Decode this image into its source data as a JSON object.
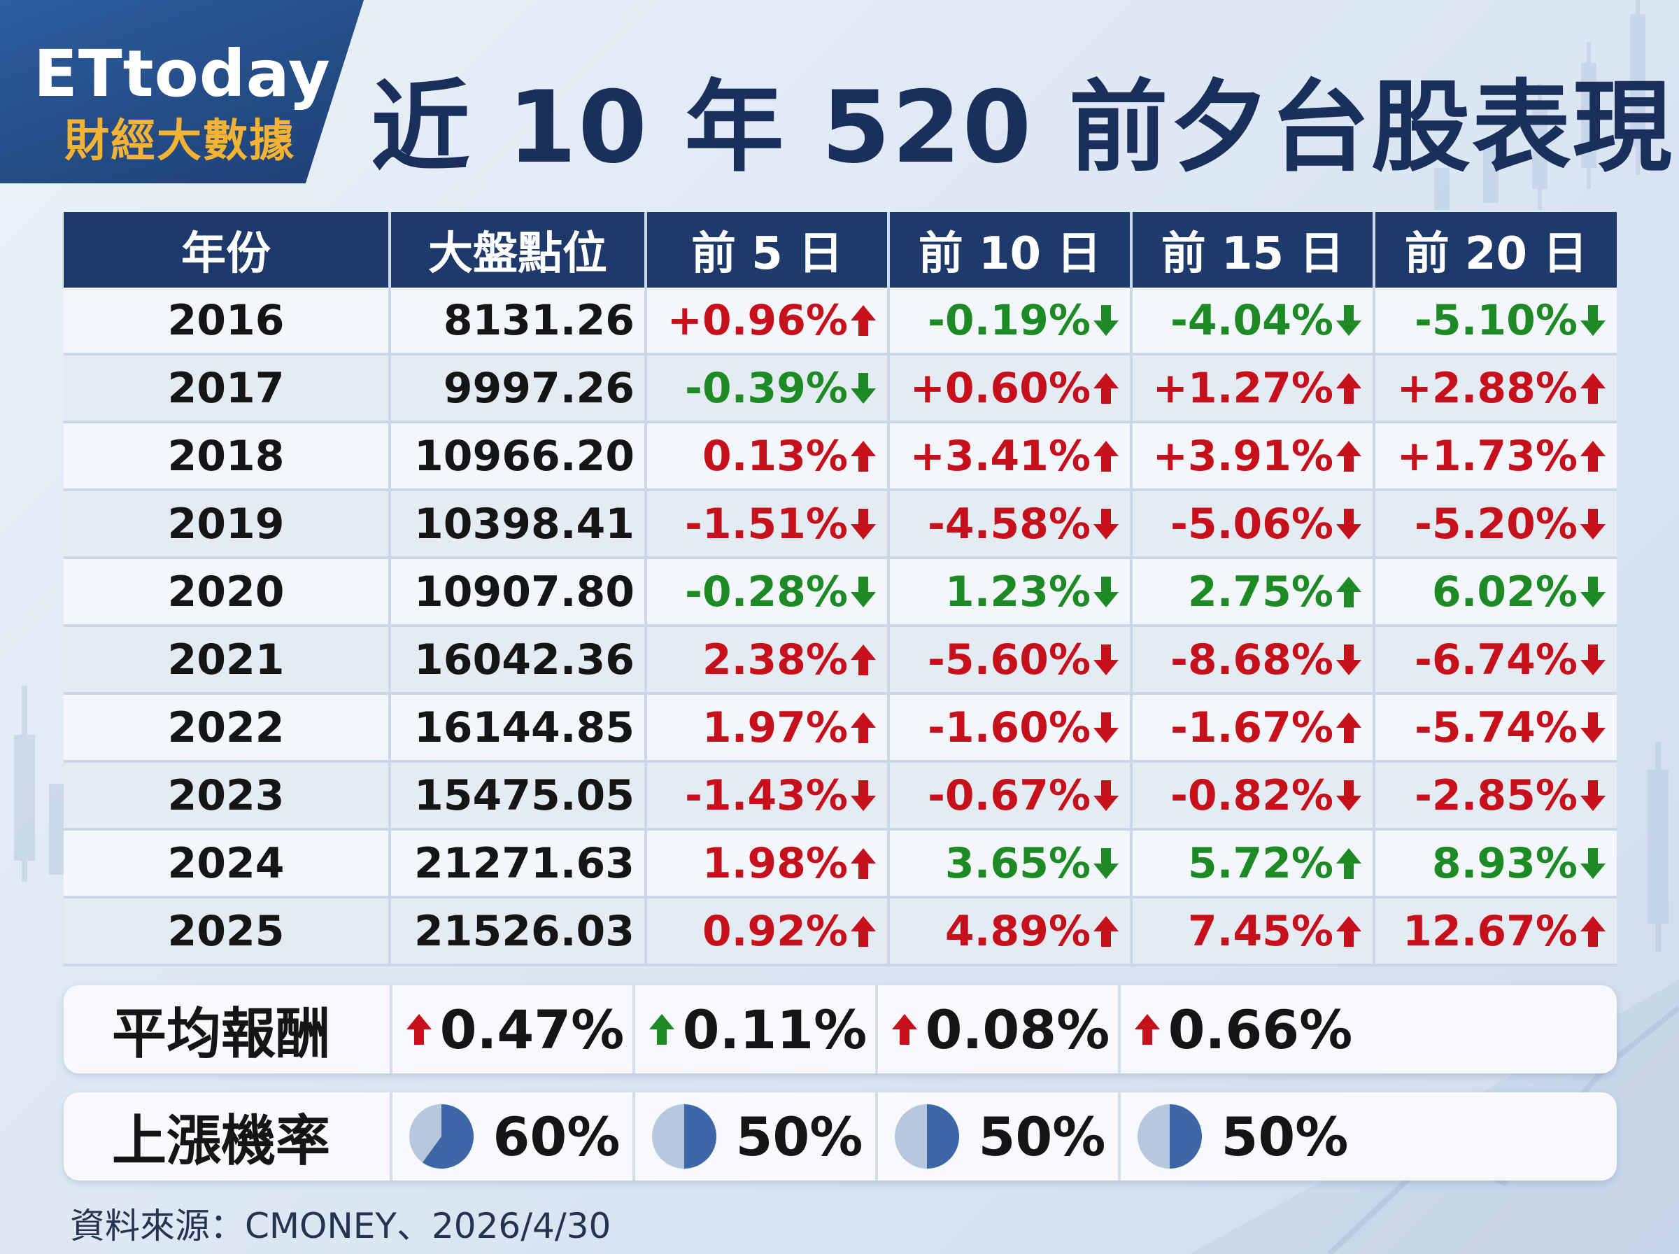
{
  "brand": {
    "logo_main": "ETtoday",
    "logo_sub": "財經大數據"
  },
  "title": "近 10 年 520 前夕台股表現",
  "chart_data": {
    "type": "table",
    "columns": [
      "年份",
      "大盤點位",
      "前 5 日",
      "前 10 日",
      "前 15 日",
      "前 20 日"
    ],
    "rows": [
      {
        "year": "2016",
        "index": "8131.26",
        "cells": [
          {
            "text": "+0.96%",
            "color": "up",
            "arrow": "up"
          },
          {
            "text": "-0.19%",
            "color": "down",
            "arrow": "down"
          },
          {
            "text": "-4.04%",
            "color": "down",
            "arrow": "down"
          },
          {
            "text": "-5.10%",
            "color": "down",
            "arrow": "down"
          }
        ]
      },
      {
        "year": "2017",
        "index": "9997.26",
        "cells": [
          {
            "text": "-0.39%",
            "color": "down",
            "arrow": "down"
          },
          {
            "text": "+0.60%",
            "color": "up",
            "arrow": "up"
          },
          {
            "text": "+1.27%",
            "color": "up",
            "arrow": "up"
          },
          {
            "text": "+2.88%",
            "color": "up",
            "arrow": "up"
          }
        ]
      },
      {
        "year": "2018",
        "index": "10966.20",
        "cells": [
          {
            "text": "0.13%",
            "color": "up",
            "arrow": "up"
          },
          {
            "text": "+3.41%",
            "color": "up",
            "arrow": "up"
          },
          {
            "text": "+3.91%",
            "color": "up",
            "arrow": "up"
          },
          {
            "text": "+1.73%",
            "color": "up",
            "arrow": "up"
          }
        ]
      },
      {
        "year": "2019",
        "index": "10398.41",
        "cells": [
          {
            "text": "-1.51%",
            "color": "up",
            "arrow": "down"
          },
          {
            "text": "-4.58%",
            "color": "up",
            "arrow": "down"
          },
          {
            "text": "-5.06%",
            "color": "up",
            "arrow": "down"
          },
          {
            "text": "-5.20%",
            "color": "up",
            "arrow": "down"
          }
        ]
      },
      {
        "year": "2020",
        "index": "10907.80",
        "cells": [
          {
            "text": "-0.28%",
            "color": "down",
            "arrow": "down"
          },
          {
            "text": "1.23%",
            "color": "down",
            "arrow": "down"
          },
          {
            "text": "2.75%",
            "color": "down",
            "arrow": "up"
          },
          {
            "text": "6.02%",
            "color": "down",
            "arrow": "down"
          }
        ]
      },
      {
        "year": "2021",
        "index": "16042.36",
        "cells": [
          {
            "text": "2.38%",
            "color": "up",
            "arrow": "up"
          },
          {
            "text": "-5.60%",
            "color": "up",
            "arrow": "down"
          },
          {
            "text": "-8.68%",
            "color": "up",
            "arrow": "down"
          },
          {
            "text": "-6.74%",
            "color": "up",
            "arrow": "down"
          }
        ]
      },
      {
        "year": "2022",
        "index": "16144.85",
        "cells": [
          {
            "text": "1.97%",
            "color": "up",
            "arrow": "up"
          },
          {
            "text": "-1.60%",
            "color": "up",
            "arrow": "down"
          },
          {
            "text": "-1.67%",
            "color": "up",
            "arrow": "up"
          },
          {
            "text": "-5.74%",
            "color": "up",
            "arrow": "down"
          }
        ]
      },
      {
        "year": "2023",
        "index": "15475.05",
        "cells": [
          {
            "text": "-1.43%",
            "color": "up",
            "arrow": "down"
          },
          {
            "text": "-0.67%",
            "color": "up",
            "arrow": "down"
          },
          {
            "text": "-0.82%",
            "color": "up",
            "arrow": "down"
          },
          {
            "text": "-2.85%",
            "color": "up",
            "arrow": "down"
          }
        ]
      },
      {
        "year": "2024",
        "index": "21271.63",
        "cells": [
          {
            "text": "1.98%",
            "color": "up",
            "arrow": "up"
          },
          {
            "text": "3.65%",
            "color": "down",
            "arrow": "down"
          },
          {
            "text": "5.72%",
            "color": "down",
            "arrow": "up"
          },
          {
            "text": "8.93%",
            "color": "down",
            "arrow": "down"
          }
        ]
      },
      {
        "year": "2025",
        "index": "21526.03",
        "cells": [
          {
            "text": "0.92%",
            "color": "up",
            "arrow": "up"
          },
          {
            "text": "4.89%",
            "color": "up",
            "arrow": "up"
          },
          {
            "text": "7.45%",
            "color": "up",
            "arrow": "up"
          },
          {
            "text": "12.67%",
            "color": "up",
            "arrow": "up"
          }
        ]
      }
    ],
    "average": {
      "label": "平均報酬",
      "values": [
        {
          "text": "0.47%",
          "arrow": "up",
          "color": "up"
        },
        {
          "text": "0.11%",
          "arrow": "up",
          "color": "down"
        },
        {
          "text": "0.08%",
          "arrow": "up",
          "color": "up"
        },
        {
          "text": "0.66%",
          "arrow": "up",
          "color": "up"
        }
      ]
    },
    "probability": {
      "label": "上漲機率",
      "values": [
        {
          "text": "60%",
          "value": 60
        },
        {
          "text": "50%",
          "value": 50
        },
        {
          "text": "50%",
          "value": 50
        },
        {
          "text": "50%",
          "value": 50
        }
      ]
    }
  },
  "colors": {
    "up": "#c6111d",
    "down": "#1e8a26",
    "header": "#1e3a6b",
    "pie_fill": "#3d67a6",
    "pie_bg": "#b7c8de"
  },
  "source": "資料來源：CMONEY、2026/4/30"
}
